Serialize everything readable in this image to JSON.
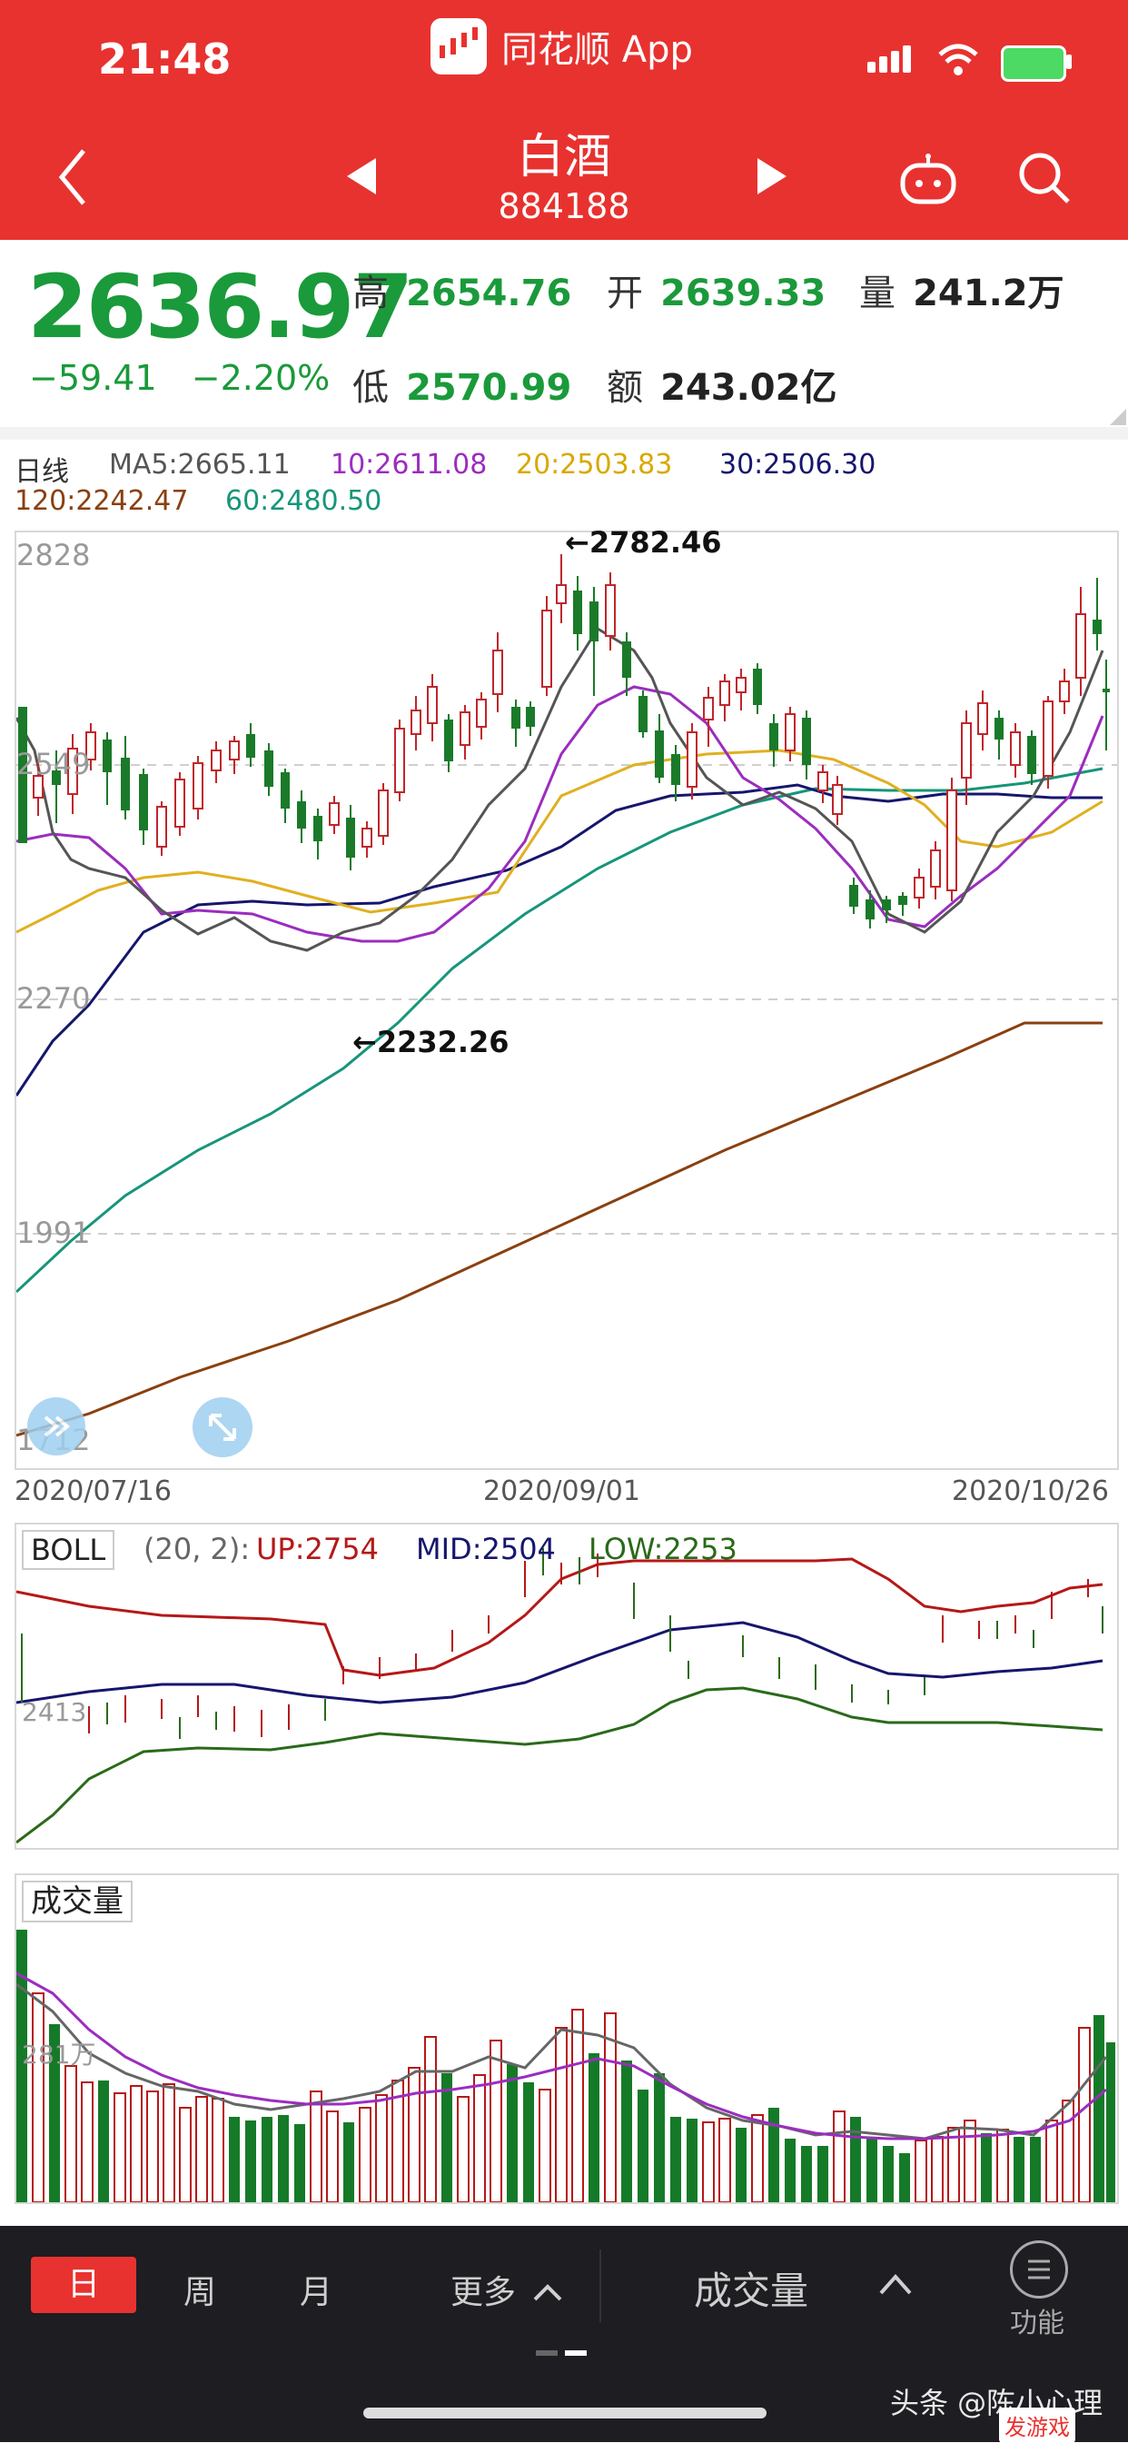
{
  "status_bar": {
    "time": "21:48",
    "app_name": "同花顺 App"
  },
  "nav": {
    "title": "白酒",
    "code": "884188",
    "prev_icon": "left-triangle-icon",
    "next_icon": "right-triangle-icon"
  },
  "quote": {
    "price": "2636.97",
    "change": "−59.41",
    "change_pct": "−2.20%",
    "high_label": "高",
    "high": "2654.76",
    "open_label": "开",
    "open": "2639.33",
    "volume_label": "量",
    "volume": "241.2万",
    "low_label": "低",
    "low": "2570.99",
    "amount_label": "额",
    "amount": "243.02亿"
  },
  "ma_legend": {
    "period": "日线",
    "ma5": "MA5:2665.11",
    "ma10": "10:2611.08",
    "ma20": "20:2503.83",
    "ma30": "30:2506.30",
    "ma120": "120:2242.47",
    "ma60": "60:2480.50"
  },
  "colors": {
    "up": "#c0262b",
    "down": "#157a28",
    "ma5": "#555555",
    "ma10": "#9b2dbf",
    "ma20": "#e0b020",
    "ma30": "#16166e",
    "ma60": "#17957a",
    "ma120": "#8a4010"
  },
  "main_chart": {
    "y_ticks": [
      "2828",
      "2549",
      "2270",
      "1991",
      "1712"
    ],
    "max_label": "←2782.46",
    "min_label": "←2232.26",
    "x_ticks": [
      "2020/07/16",
      "2020/09/01",
      "2020/10/26"
    ]
  },
  "boll": {
    "name": "BOLL",
    "params": "(20, 2):",
    "up": "UP:2754",
    "mid": "MID:2504",
    "low": "LOW:2253",
    "tick": "2413"
  },
  "volume_panel": {
    "name": "成交量",
    "tick": "281万"
  },
  "bottom_bar": {
    "periods": [
      "日",
      "周",
      "月"
    ],
    "more": "更多",
    "indicator": "成交量",
    "function": "功能"
  },
  "watermark": {
    "text": "头条 @陈小心理",
    "site": "发游戏"
  }
}
